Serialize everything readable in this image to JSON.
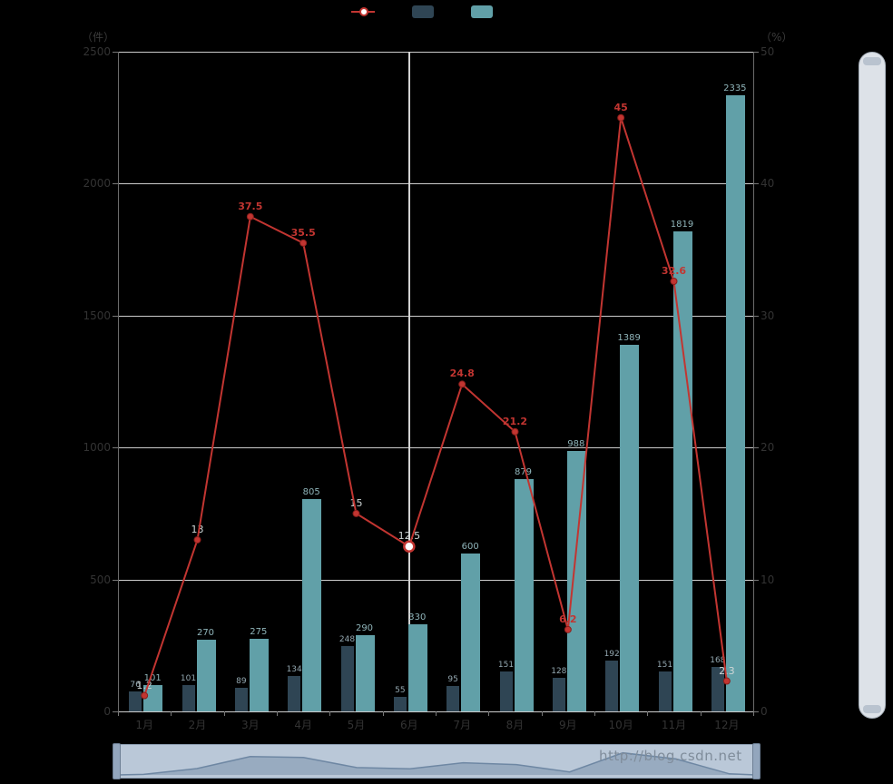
{
  "chart_data": {
    "type": "mixed",
    "title": "",
    "categories": [
      "1月",
      "2月",
      "3月",
      "4月",
      "5月",
      "6月",
      "7月",
      "8月",
      "9月",
      "10月",
      "11月",
      "12月"
    ],
    "series": [
      {
        "name": "",
        "type": "line",
        "axis": "right",
        "color": "#c23531",
        "values": [
          1.2,
          13,
          37.5,
          35.5,
          15,
          12.5,
          24.8,
          21.2,
          6.2,
          45,
          32.6,
          2.3
        ],
        "labels": [
          "1.2",
          "13",
          "37.5",
          "35.5",
          "15",
          "12.5",
          "24.8",
          "21.2",
          "6.2",
          "45",
          "32.6",
          "2.3"
        ],
        "light_label_indices": [
          0,
          1,
          4,
          5,
          11
        ],
        "emphasis_index": 5
      },
      {
        "name": "",
        "type": "bar",
        "axis": "left",
        "color": "#2f4554",
        "values": [
          76,
          101,
          89,
          134,
          248,
          55,
          95,
          151,
          128,
          192,
          151,
          168
        ],
        "labels": [
          "76",
          "101",
          "89",
          "134",
          "248",
          "55",
          "95",
          "151",
          "128",
          "192",
          "151",
          "168"
        ]
      },
      {
        "name": "",
        "type": "bar",
        "axis": "left",
        "color": "#61a0a8",
        "values": [
          101,
          270,
          275,
          805,
          290,
          330,
          600,
          879,
          988,
          1389,
          1819,
          2335
        ],
        "labels": [
          "101",
          "270",
          "275",
          "805",
          "290",
          "330",
          "600",
          "879",
          "988",
          "1389",
          "1819",
          "2335"
        ]
      }
    ],
    "left_axis": {
      "name": "（件）",
      "min": 0,
      "max": 2500,
      "ticks": [
        0,
        500,
        1000,
        1500,
        2000,
        2500
      ]
    },
    "right_axis": {
      "name": "（%）",
      "min": 0,
      "max": 50,
      "ticks": [
        0,
        10,
        20,
        30,
        40,
        50
      ]
    },
    "grid": true,
    "legend_position": "top",
    "pointer_index": 5,
    "datazoom": {
      "horizontal": true,
      "vertical": true
    }
  },
  "watermark": "http://blog.csdn.net",
  "colors": {
    "background": "#000000",
    "line": "#c23531",
    "bar_dark": "#2f4554",
    "bar_teal": "#61a0a8",
    "grid": "#cccccc",
    "axis_label": "#333333",
    "slider_fill": "#bac8d8",
    "slider_shadow": "#6e87a3",
    "watermark_color": "#7f8c9a"
  }
}
